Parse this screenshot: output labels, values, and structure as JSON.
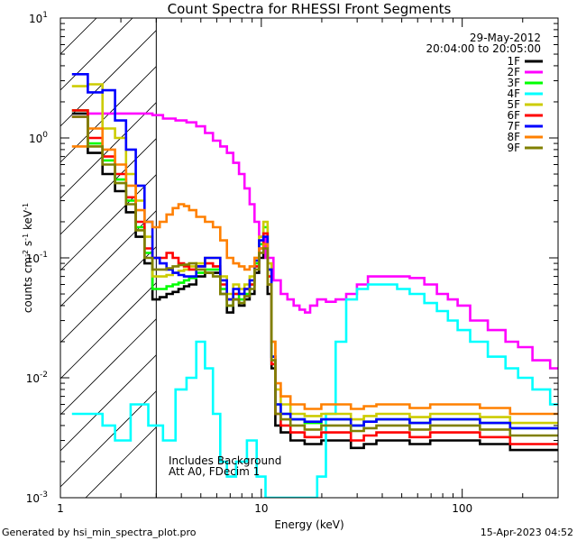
{
  "chart_data": {
    "type": "line",
    "title": "Count Spectra for RHESSI Front Segments",
    "xlabel": "Energy (keV)",
    "ylabel_main": "counts cm",
    "ylabel_exp1": "-2",
    "ylabel_mid": " s",
    "ylabel_exp2": "-1",
    "ylabel_end": " keV",
    "ylabel_exp3": "-1",
    "x_scale": "log",
    "y_scale": "log",
    "xlim": [
      1,
      300
    ],
    "ylim": [
      0.001,
      10
    ],
    "x_tick_labels": [
      {
        "value": 1,
        "label": "1"
      },
      {
        "value": 10,
        "label": "10"
      },
      {
        "value": 100,
        "label": "100"
      }
    ],
    "y_tick_labels": [
      {
        "value": 10,
        "base": "10",
        "exp": "1"
      },
      {
        "value": 1,
        "base": "10",
        "exp": "0"
      },
      {
        "value": 0.1,
        "base": "10",
        "exp": "-1"
      },
      {
        "value": 0.01,
        "base": "10",
        "exp": "-2"
      },
      {
        "value": 0.001,
        "base": "10",
        "exp": "-3"
      }
    ],
    "hatch_region": {
      "x_min": 1,
      "x_max": 3
    },
    "date": "29-May-2012",
    "time_range": "20:04:00 to 20:05:00",
    "annotation_line1": "Includes Background",
    "annotation_line2": "Att A0, FDecim 1",
    "footer_left": "Generated by hsi_min_spectra_plot.pro",
    "footer_right": "15-Apr-2023 04:52",
    "series": [
      {
        "name": "1F",
        "color": "#000000",
        "x": [
          1.25,
          1.5,
          1.75,
          2.0,
          2.25,
          2.5,
          2.75,
          3.0,
          3.25,
          3.5,
          3.75,
          4.0,
          4.25,
          4.5,
          5.0,
          5.5,
          6.0,
          6.5,
          7.0,
          7.5,
          8.0,
          8.5,
          9.0,
          9.5,
          10.0,
          10.5,
          11.0,
          11.5,
          12.0,
          13.0,
          15.0,
          18.0,
          22.0,
          26.0,
          30.0,
          35.0,
          40.0,
          50.0,
          60.0,
          80.0,
          100.0,
          150.0,
          200.0,
          250.0,
          300.0
        ],
        "y": [
          1.6,
          0.75,
          0.5,
          0.36,
          0.24,
          0.15,
          0.09,
          0.045,
          0.047,
          0.05,
          0.052,
          0.055,
          0.058,
          0.06,
          0.07,
          0.075,
          0.075,
          0.05,
          0.035,
          0.045,
          0.04,
          0.045,
          0.05,
          0.075,
          0.1,
          0.11,
          0.05,
          0.012,
          0.004,
          0.0035,
          0.003,
          0.0028,
          0.003,
          0.003,
          0.0026,
          0.0028,
          0.003,
          0.003,
          0.0028,
          0.003,
          0.003,
          0.0028,
          0.0025,
          0.0025,
          0.0025
        ]
      },
      {
        "name": "2F",
        "color": "#ff00ff",
        "x": [
          1.25,
          1.5,
          1.75,
          2.0,
          2.25,
          2.5,
          2.75,
          3.0,
          3.5,
          4.0,
          4.5,
          5.0,
          5.5,
          6.0,
          6.5,
          7.0,
          7.5,
          8.0,
          8.5,
          9.0,
          9.5,
          10.0,
          11.0,
          12.0,
          13.0,
          14.0,
          15.0,
          16.0,
          17.0,
          18.0,
          20.0,
          22.0,
          25.0,
          28.0,
          32.0,
          36.0,
          40.0,
          45.0,
          50.0,
          60.0,
          70.0,
          80.0,
          90.0,
          100.0,
          120.0,
          150.0,
          180.0,
          200.0,
          250.0,
          300.0
        ],
        "y": [
          1.5,
          1.6,
          1.6,
          1.6,
          1.6,
          1.6,
          1.6,
          1.55,
          1.45,
          1.4,
          1.35,
          1.25,
          1.1,
          0.95,
          0.85,
          0.75,
          0.62,
          0.5,
          0.38,
          0.28,
          0.2,
          0.15,
          0.1,
          0.065,
          0.05,
          0.045,
          0.04,
          0.037,
          0.035,
          0.04,
          0.045,
          0.043,
          0.045,
          0.05,
          0.06,
          0.07,
          0.07,
          0.07,
          0.07,
          0.068,
          0.06,
          0.05,
          0.045,
          0.04,
          0.03,
          0.025,
          0.02,
          0.018,
          0.014,
          0.012
        ]
      },
      {
        "name": "3F",
        "color": "#00ff00",
        "x": [
          1.25,
          1.5,
          1.75,
          2.0,
          2.25,
          2.5,
          2.75,
          3.0,
          3.25,
          3.5,
          3.75,
          4.0,
          4.25,
          4.5,
          5.0,
          5.5,
          6.0,
          6.5,
          7.0,
          7.5,
          8.0,
          8.5,
          9.0,
          9.5,
          10.0,
          10.5,
          11.0,
          11.5,
          12.0,
          13.0,
          15.0,
          18.0,
          22.0,
          26.0,
          30.0,
          35.0,
          40.0,
          50.0,
          60.0,
          80.0,
          100.0,
          150.0,
          200.0,
          250.0,
          300.0
        ],
        "y": [
          1.7,
          0.9,
          0.65,
          0.45,
          0.3,
          0.18,
          0.11,
          0.055,
          0.055,
          0.058,
          0.06,
          0.062,
          0.065,
          0.068,
          0.075,
          0.08,
          0.08,
          0.055,
          0.04,
          0.05,
          0.045,
          0.05,
          0.06,
          0.09,
          0.13,
          0.18,
          0.08,
          0.015,
          0.006,
          0.005,
          0.0045,
          0.0042,
          0.0045,
          0.0045,
          0.004,
          0.0043,
          0.0045,
          0.0045,
          0.0042,
          0.0045,
          0.0045,
          0.0042,
          0.0038,
          0.0038,
          0.0038
        ]
      },
      {
        "name": "4F",
        "color": "#00ffff",
        "x": [
          1.25,
          1.5,
          1.75,
          2.0,
          2.5,
          3.0,
          3.5,
          4.0,
          4.5,
          5.0,
          5.5,
          6.0,
          6.5,
          7.0,
          8.0,
          9.0,
          10.0,
          11.0,
          12.0,
          13.0,
          15.0,
          18.0,
          20.0,
          22.0,
          25.0,
          28.0,
          32.0,
          36.0,
          40.0,
          45.0,
          50.0,
          60.0,
          70.0,
          80.0,
          90.0,
          100.0,
          120.0,
          150.0,
          180.0,
          200.0,
          250.0,
          300.0
        ],
        "y": [
          0.005,
          0.005,
          0.004,
          0.003,
          0.006,
          0.004,
          0.003,
          0.008,
          0.01,
          0.02,
          0.012,
          0.005,
          0.002,
          0.0015,
          0.002,
          0.003,
          0.0015,
          0.001,
          0.001,
          0.001,
          0.001,
          0.001,
          0.0015,
          0.005,
          0.02,
          0.045,
          0.055,
          0.06,
          0.06,
          0.06,
          0.055,
          0.05,
          0.042,
          0.036,
          0.03,
          0.025,
          0.02,
          0.015,
          0.012,
          0.01,
          0.008,
          0.006
        ]
      },
      {
        "name": "5F",
        "color": "#cccc00",
        "x": [
          1.25,
          1.5,
          1.75,
          2.0,
          2.25,
          2.5,
          2.75,
          3.0,
          3.25,
          3.5,
          3.75,
          4.0,
          4.25,
          4.5,
          5.0,
          5.5,
          6.0,
          6.5,
          7.0,
          7.5,
          8.0,
          8.5,
          9.0,
          9.5,
          10.0,
          10.5,
          11.0,
          11.5,
          12.0,
          13.0,
          15.0,
          18.0,
          22.0,
          26.0,
          30.0,
          35.0,
          40.0,
          50.0,
          60.0,
          80.0,
          100.0,
          150.0,
          200.0,
          250.0,
          300.0
        ],
        "y": [
          2.7,
          2.8,
          1.2,
          1.0,
          0.5,
          0.3,
          0.15,
          0.07,
          0.07,
          0.072,
          0.075,
          0.078,
          0.08,
          0.085,
          0.09,
          0.1,
          0.1,
          0.07,
          0.05,
          0.06,
          0.055,
          0.06,
          0.07,
          0.1,
          0.15,
          0.2,
          0.09,
          0.02,
          0.008,
          0.006,
          0.005,
          0.0048,
          0.005,
          0.005,
          0.0045,
          0.0048,
          0.005,
          0.005,
          0.0047,
          0.005,
          0.005,
          0.0047,
          0.0042,
          0.0042,
          0.0042
        ]
      },
      {
        "name": "6F",
        "color": "#ff0000",
        "x": [
          1.25,
          1.5,
          1.75,
          2.0,
          2.25,
          2.5,
          2.75,
          3.0,
          3.25,
          3.5,
          3.75,
          4.0,
          4.25,
          4.5,
          5.0,
          5.5,
          6.0,
          6.5,
          7.0,
          7.5,
          8.0,
          8.5,
          9.0,
          9.5,
          10.0,
          10.5,
          11.0,
          11.5,
          12.0,
          13.0,
          15.0,
          18.0,
          22.0,
          26.0,
          30.0,
          35.0,
          40.0,
          50.0,
          60.0,
          80.0,
          100.0,
          150.0,
          200.0,
          250.0,
          300.0
        ],
        "y": [
          1.7,
          1.0,
          0.7,
          0.5,
          0.32,
          0.2,
          0.12,
          0.1,
          0.1,
          0.11,
          0.1,
          0.09,
          0.085,
          0.08,
          0.085,
          0.09,
          0.085,
          0.06,
          0.045,
          0.05,
          0.05,
          0.055,
          0.06,
          0.085,
          0.12,
          0.16,
          0.07,
          0.013,
          0.005,
          0.004,
          0.0035,
          0.0032,
          0.0035,
          0.0035,
          0.003,
          0.0033,
          0.0035,
          0.0035,
          0.0032,
          0.0035,
          0.0035,
          0.0032,
          0.0028,
          0.0028,
          0.0028
        ]
      },
      {
        "name": "7F",
        "color": "#0000ff",
        "x": [
          1.25,
          1.5,
          1.75,
          2.0,
          2.25,
          2.5,
          2.75,
          3.0,
          3.25,
          3.5,
          3.75,
          4.0,
          4.25,
          4.5,
          5.0,
          5.5,
          6.0,
          6.5,
          7.0,
          7.5,
          8.0,
          8.5,
          9.0,
          9.5,
          10.0,
          10.5,
          11.0,
          11.5,
          12.0,
          13.0,
          15.0,
          18.0,
          22.0,
          26.0,
          30.0,
          35.0,
          40.0,
          50.0,
          60.0,
          80.0,
          100.0,
          150.0,
          200.0,
          250.0,
          300.0
        ],
        "y": [
          3.4,
          2.4,
          2.5,
          1.4,
          0.8,
          0.4,
          0.2,
          0.1,
          0.09,
          0.08,
          0.075,
          0.072,
          0.07,
          0.07,
          0.085,
          0.1,
          0.1,
          0.065,
          0.045,
          0.055,
          0.05,
          0.055,
          0.065,
          0.095,
          0.14,
          0.15,
          0.08,
          0.015,
          0.006,
          0.005,
          0.0045,
          0.0043,
          0.0045,
          0.0045,
          0.004,
          0.0043,
          0.0045,
          0.0045,
          0.0042,
          0.0045,
          0.0045,
          0.0042,
          0.0038,
          0.0038,
          0.0038
        ]
      },
      {
        "name": "8F",
        "color": "#ff8000",
        "x": [
          1.25,
          1.5,
          1.75,
          2.0,
          2.25,
          2.5,
          2.75,
          3.0,
          3.25,
          3.5,
          3.75,
          4.0,
          4.25,
          4.5,
          5.0,
          5.5,
          6.0,
          6.5,
          7.0,
          7.5,
          8.0,
          8.5,
          9.0,
          9.5,
          10.0,
          10.5,
          11.0,
          11.5,
          12.0,
          13.0,
          15.0,
          18.0,
          22.0,
          26.0,
          30.0,
          35.0,
          40.0,
          50.0,
          60.0,
          80.0,
          100.0,
          150.0,
          200.0,
          250.0,
          300.0
        ],
        "y": [
          0.85,
          1.2,
          0.8,
          0.6,
          0.4,
          0.25,
          0.2,
          0.18,
          0.2,
          0.23,
          0.26,
          0.28,
          0.27,
          0.25,
          0.22,
          0.2,
          0.18,
          0.14,
          0.1,
          0.09,
          0.085,
          0.08,
          0.085,
          0.1,
          0.12,
          0.13,
          0.06,
          0.02,
          0.009,
          0.007,
          0.006,
          0.0055,
          0.006,
          0.006,
          0.0055,
          0.0058,
          0.006,
          0.006,
          0.0056,
          0.006,
          0.006,
          0.0056,
          0.005,
          0.005,
          0.005
        ]
      },
      {
        "name": "9F",
        "color": "#808000",
        "x": [
          1.25,
          1.5,
          1.75,
          2.0,
          2.25,
          2.5,
          2.75,
          3.0,
          3.25,
          3.5,
          3.75,
          4.0,
          4.25,
          4.5,
          5.0,
          5.5,
          6.0,
          6.5,
          7.0,
          7.5,
          8.0,
          8.5,
          9.0,
          9.5,
          10.0,
          10.5,
          11.0,
          11.5,
          12.0,
          13.0,
          15.0,
          18.0,
          22.0,
          26.0,
          30.0,
          35.0,
          40.0,
          50.0,
          60.0,
          80.0,
          100.0,
          150.0,
          200.0,
          250.0,
          300.0
        ],
        "y": [
          1.5,
          0.85,
          0.6,
          0.42,
          0.28,
          0.17,
          0.1,
          0.08,
          0.08,
          0.082,
          0.085,
          0.087,
          0.088,
          0.09,
          0.08,
          0.075,
          0.07,
          0.05,
          0.04,
          0.045,
          0.042,
          0.048,
          0.055,
          0.08,
          0.11,
          0.12,
          0.06,
          0.014,
          0.005,
          0.0045,
          0.004,
          0.0037,
          0.004,
          0.004,
          0.0036,
          0.0038,
          0.004,
          0.004,
          0.0037,
          0.004,
          0.004,
          0.0037,
          0.0033,
          0.0033,
          0.0033
        ]
      }
    ]
  }
}
